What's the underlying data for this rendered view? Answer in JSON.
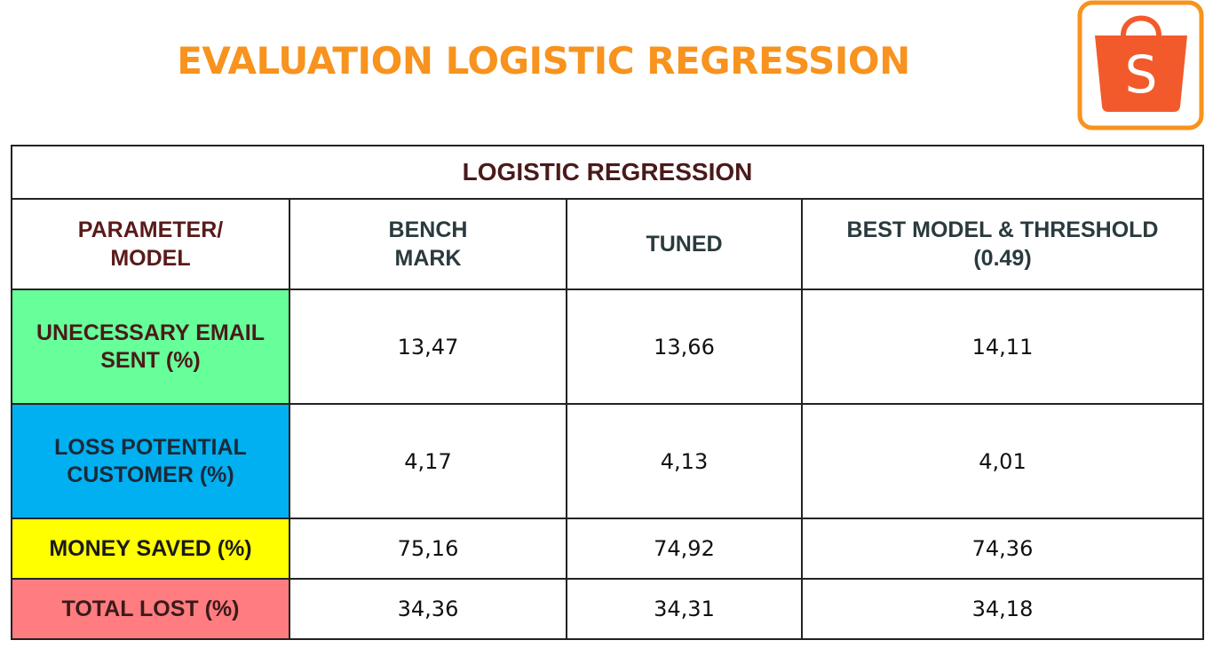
{
  "title": "EVALUATION LOGISTIC REGRESSION",
  "logo": {
    "icon": "shopee-bag-icon",
    "letter": "S",
    "border_color": "#f7931e",
    "fill_color": "#f25a2b"
  },
  "table": {
    "caption": "LOGISTIC REGRESSION",
    "headers": {
      "parameter": [
        "PARAMETER/",
        "MODEL"
      ],
      "benchmark": [
        "BENCH",
        "MARK"
      ],
      "tuned": [
        "TUNED"
      ],
      "best": [
        "BEST MODEL & THRESHOLD",
        "(0.49)"
      ]
    },
    "rows": [
      {
        "label": [
          "UNECESSARY EMAIL",
          "SENT (%)"
        ],
        "benchmark": "13,47",
        "tuned": "13,66",
        "best": "14,11",
        "color": "#66ff99"
      },
      {
        "label": [
          "LOSS POTENTIAL",
          "CUSTOMER (%)"
        ],
        "benchmark": "4,17",
        "tuned": "4,13",
        "best": "4,01",
        "color": "#00b0f0"
      },
      {
        "label": [
          "MONEY SAVED (%)"
        ],
        "benchmark": "75,16",
        "tuned": "74,92",
        "best": "74,36",
        "color": "#ffff00"
      },
      {
        "label": [
          "TOTAL LOST (%)"
        ],
        "benchmark": "34,36",
        "tuned": "34,31",
        "best": "34,18",
        "color": "#ff7c80"
      }
    ]
  }
}
